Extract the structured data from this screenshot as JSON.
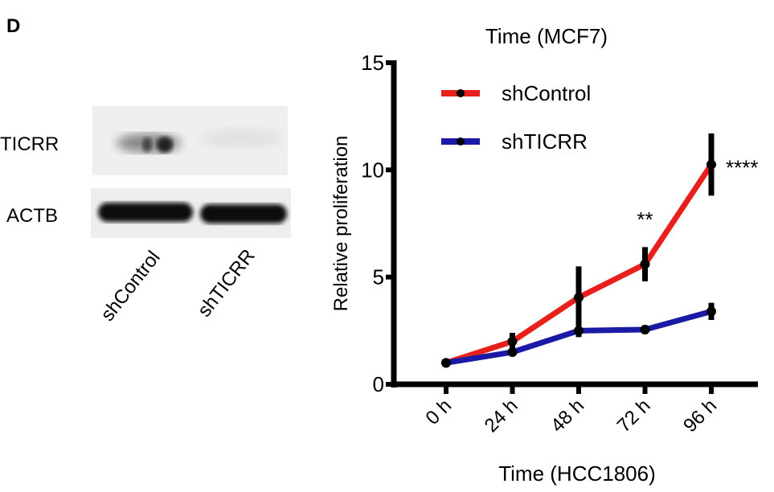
{
  "panel_label": "D",
  "top_caption": "Time (MCF7)",
  "western_blot": {
    "bands": [
      "TICRR",
      "ACTB"
    ],
    "lanes": [
      "shControl",
      "shTICRR"
    ]
  },
  "chart_data": {
    "type": "line",
    "title": "",
    "xlabel": "Time (HCC1806)",
    "ylabel": "Relative proliferation",
    "categories": [
      "0 h",
      "24 h",
      "48 h",
      "72 h",
      "96 h"
    ],
    "ylim": [
      0,
      15
    ],
    "yticks": [
      0,
      5,
      10,
      15
    ],
    "grid": false,
    "legend": "top-left",
    "series": [
      {
        "name": "shControl",
        "color": "#e8201c",
        "values": [
          1.0,
          2.0,
          4.05,
          5.6,
          10.25
        ],
        "errors": [
          0.05,
          0.4,
          1.45,
          0.8,
          1.45
        ]
      },
      {
        "name": "shTICRR",
        "color": "#1a1aa6",
        "values": [
          1.0,
          1.5,
          2.5,
          2.55,
          3.4
        ],
        "errors": [
          0.05,
          0.2,
          0.3,
          0.2,
          0.4
        ]
      }
    ],
    "annotations": [
      {
        "category": "72 h",
        "text": "**"
      },
      {
        "category": "96 h",
        "text": "****"
      }
    ]
  }
}
